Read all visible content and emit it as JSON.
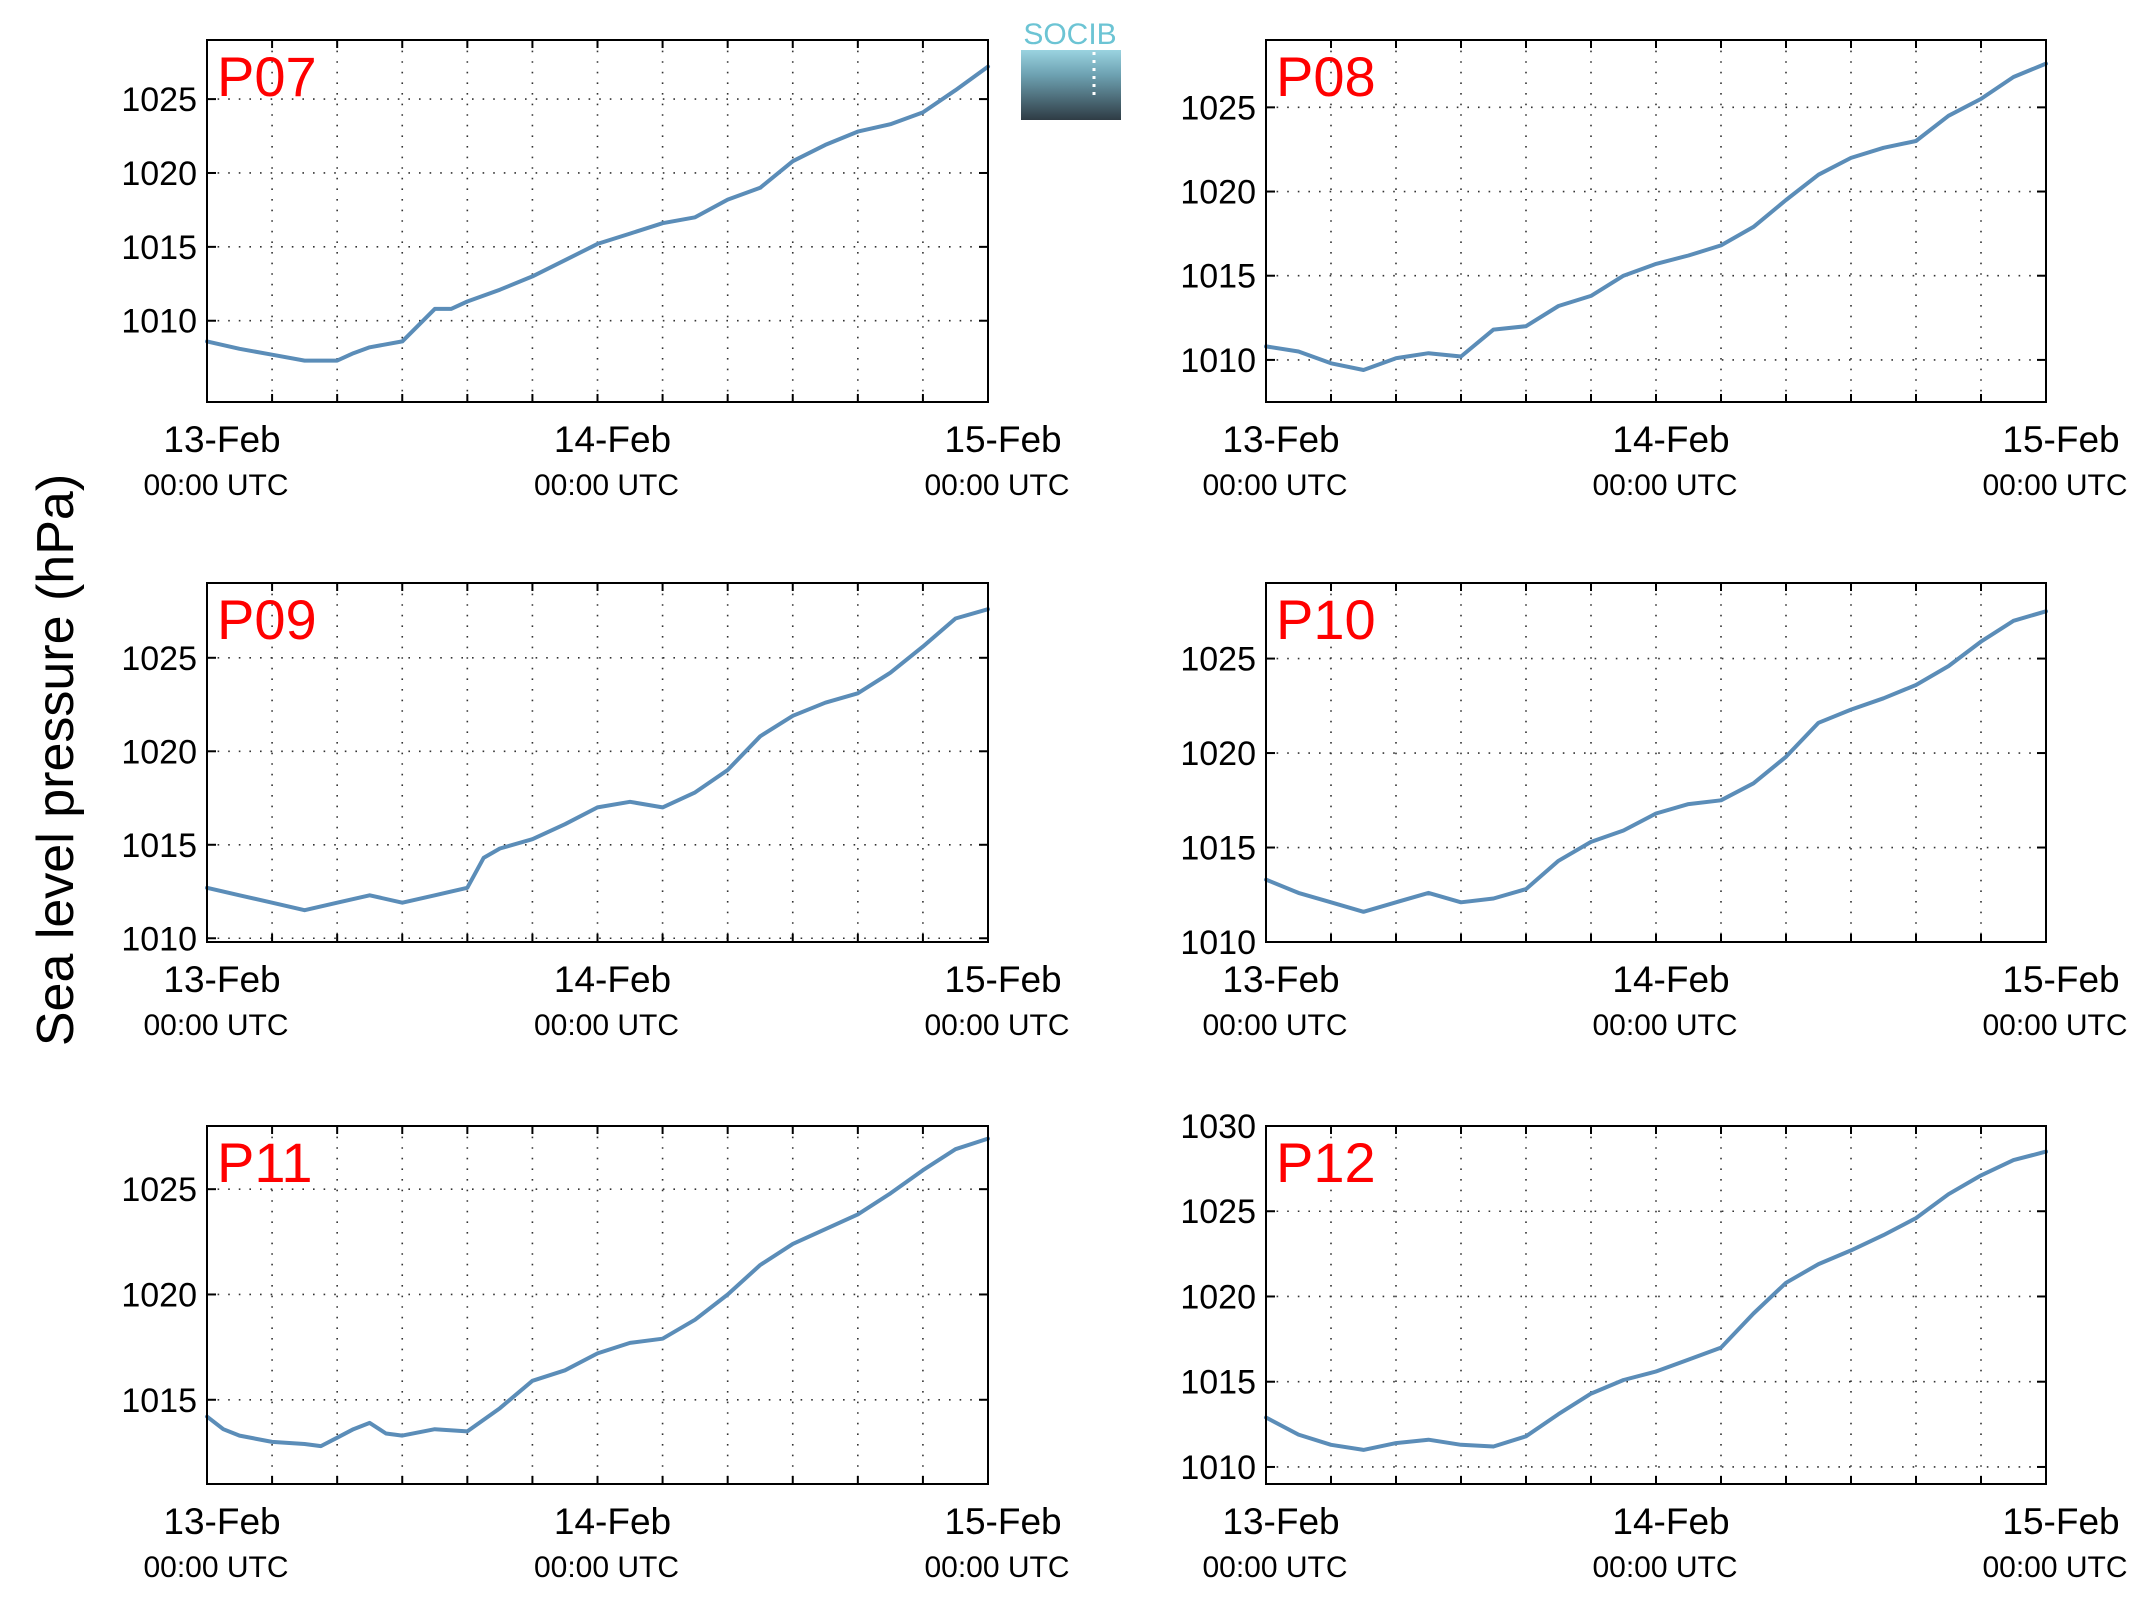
{
  "figure": {
    "ylabel": "Sea level pressure (hPa)",
    "logo_text": "SOCIB",
    "line_color": "#5b8db8",
    "title_color": "#ff0000"
  },
  "chart_data": [
    {
      "type": "line",
      "title": "P07",
      "x_ticks": [
        "13-Feb",
        "14-Feb",
        "15-Feb"
      ],
      "x_tick_sublabels": [
        "00:00 UTC",
        "00:00 UTC",
        "00:00 UTC"
      ],
      "xlim_hours": [
        0,
        48
      ],
      "ylim": [
        1004.5,
        1029
      ],
      "yticks": [
        1010,
        1015,
        1020,
        1025
      ],
      "grid": true,
      "series": [
        {
          "x_hours": [
            0,
            2,
            4,
            6,
            8,
            9,
            10,
            12,
            14,
            15,
            16,
            17,
            18,
            20,
            22,
            24,
            26,
            28,
            30,
            32,
            34,
            36,
            38,
            40,
            42,
            44,
            46,
            48
          ],
          "values": [
            1008.6,
            1008.1,
            1007.7,
            1007.3,
            1007.3,
            1007.8,
            1008.2,
            1008.6,
            1010.8,
            1010.8,
            1011.3,
            1011.7,
            1012.1,
            1013.0,
            1014.1,
            1015.2,
            1015.9,
            1016.6,
            1017.0,
            1018.2,
            1019.0,
            1020.8,
            1021.9,
            1022.8,
            1023.3,
            1024.1,
            1025.6,
            1027.2
          ]
        }
      ]
    },
    {
      "type": "line",
      "title": "P08",
      "x_ticks": [
        "13-Feb",
        "14-Feb",
        "15-Feb"
      ],
      "x_tick_sublabels": [
        "00:00 UTC",
        "00:00 UTC",
        "00:00 UTC"
      ],
      "xlim_hours": [
        0,
        48
      ],
      "ylim": [
        1007.5,
        1029
      ],
      "yticks": [
        1010,
        1015,
        1020,
        1025
      ],
      "grid": true,
      "series": [
        {
          "x_hours": [
            0,
            2,
            4,
            6,
            8,
            10,
            12,
            14,
            16,
            18,
            20,
            22,
            24,
            26,
            28,
            30,
            32,
            34,
            36,
            38,
            40,
            42,
            44,
            46,
            48
          ],
          "values": [
            1010.8,
            1010.5,
            1009.8,
            1009.4,
            1010.1,
            1010.4,
            1010.2,
            1011.8,
            1012.0,
            1013.2,
            1013.8,
            1015.0,
            1015.7,
            1016.2,
            1016.8,
            1017.9,
            1019.5,
            1021.0,
            1022.0,
            1022.6,
            1023.0,
            1024.5,
            1025.5,
            1026.8,
            1027.6
          ]
        }
      ]
    },
    {
      "type": "line",
      "title": "P09",
      "x_ticks": [
        "13-Feb",
        "14-Feb",
        "15-Feb"
      ],
      "x_tick_sublabels": [
        "00:00 UTC",
        "00:00 UTC",
        "00:00 UTC"
      ],
      "xlim_hours": [
        0,
        48
      ],
      "ylim": [
        1009.8,
        1029
      ],
      "yticks": [
        1010,
        1015,
        1020,
        1025
      ],
      "grid": true,
      "series": [
        {
          "x_hours": [
            0,
            2,
            4,
            6,
            8,
            10,
            12,
            14,
            16,
            16.5,
            17,
            18,
            20,
            22,
            24,
            26,
            28,
            30,
            32,
            34,
            36,
            38,
            40,
            42,
            44,
            46,
            48
          ],
          "values": [
            1012.7,
            1012.3,
            1011.9,
            1011.5,
            1011.9,
            1012.3,
            1011.9,
            1012.3,
            1012.7,
            1013.5,
            1014.3,
            1014.8,
            1015.3,
            1016.1,
            1017.0,
            1017.3,
            1017.0,
            1017.8,
            1019.0,
            1020.8,
            1021.9,
            1022.6,
            1023.1,
            1024.2,
            1025.6,
            1027.1,
            1027.6
          ]
        }
      ]
    },
    {
      "type": "line",
      "title": "P10",
      "x_ticks": [
        "13-Feb",
        "14-Feb",
        "15-Feb"
      ],
      "x_tick_sublabels": [
        "00:00 UTC",
        "00:00 UTC",
        "00:00 UTC"
      ],
      "xlim_hours": [
        0,
        48
      ],
      "ylim": [
        1010,
        1029
      ],
      "yticks": [
        1010,
        1015,
        1020,
        1025
      ],
      "grid": true,
      "series": [
        {
          "x_hours": [
            0,
            2,
            4,
            6,
            8,
            10,
            12,
            14,
            16,
            18,
            20,
            22,
            24,
            26,
            28,
            30,
            32,
            34,
            36,
            38,
            40,
            42,
            44,
            46,
            48
          ],
          "values": [
            1013.3,
            1012.6,
            1012.1,
            1011.6,
            1012.1,
            1012.6,
            1012.1,
            1012.3,
            1012.8,
            1014.3,
            1015.3,
            1015.9,
            1016.8,
            1017.3,
            1017.5,
            1018.4,
            1019.8,
            1021.6,
            1022.3,
            1022.9,
            1023.6,
            1024.6,
            1025.9,
            1027.0,
            1027.5
          ]
        }
      ]
    },
    {
      "type": "line",
      "title": "P11",
      "x_ticks": [
        "13-Feb",
        "14-Feb",
        "15-Feb"
      ],
      "x_tick_sublabels": [
        "00:00 UTC",
        "00:00 UTC",
        "00:00 UTC"
      ],
      "xlim_hours": [
        0,
        48
      ],
      "ylim": [
        1011,
        1028
      ],
      "yticks": [
        1015,
        1020,
        1025
      ],
      "grid": true,
      "series": [
        {
          "x_hours": [
            0,
            1,
            2,
            4,
            6,
            7,
            8,
            9,
            10,
            11,
            12,
            14,
            16,
            18,
            20,
            22,
            24,
            26,
            28,
            30,
            32,
            34,
            36,
            38,
            40,
            42,
            44,
            46,
            48
          ],
          "values": [
            1014.2,
            1013.6,
            1013.3,
            1013.0,
            1012.9,
            1012.8,
            1013.2,
            1013.6,
            1013.9,
            1013.4,
            1013.3,
            1013.6,
            1013.5,
            1014.6,
            1015.9,
            1016.4,
            1017.2,
            1017.7,
            1017.9,
            1018.8,
            1020.0,
            1021.4,
            1022.4,
            1023.1,
            1023.8,
            1024.8,
            1025.9,
            1026.9,
            1027.4
          ]
        }
      ]
    },
    {
      "type": "line",
      "title": "P12",
      "x_ticks": [
        "13-Feb",
        "14-Feb",
        "15-Feb"
      ],
      "x_tick_sublabels": [
        "00:00 UTC",
        "00:00 UTC",
        "00:00 UTC"
      ],
      "xlim_hours": [
        0,
        48
      ],
      "ylim": [
        1009,
        1030
      ],
      "yticks": [
        1010,
        1015,
        1020,
        1025,
        1030
      ],
      "grid": true,
      "series": [
        {
          "x_hours": [
            0,
            2,
            4,
            6,
            8,
            10,
            12,
            14,
            16,
            18,
            20,
            22,
            24,
            26,
            28,
            30,
            32,
            34,
            36,
            38,
            40,
            42,
            44,
            46,
            48
          ],
          "values": [
            1012.9,
            1011.9,
            1011.3,
            1011.0,
            1011.4,
            1011.6,
            1011.3,
            1011.2,
            1011.8,
            1013.1,
            1014.3,
            1015.1,
            1015.6,
            1016.3,
            1017.0,
            1019.0,
            1020.8,
            1021.9,
            1022.7,
            1023.6,
            1024.6,
            1026.0,
            1027.1,
            1028.0,
            1028.5
          ]
        }
      ]
    }
  ]
}
